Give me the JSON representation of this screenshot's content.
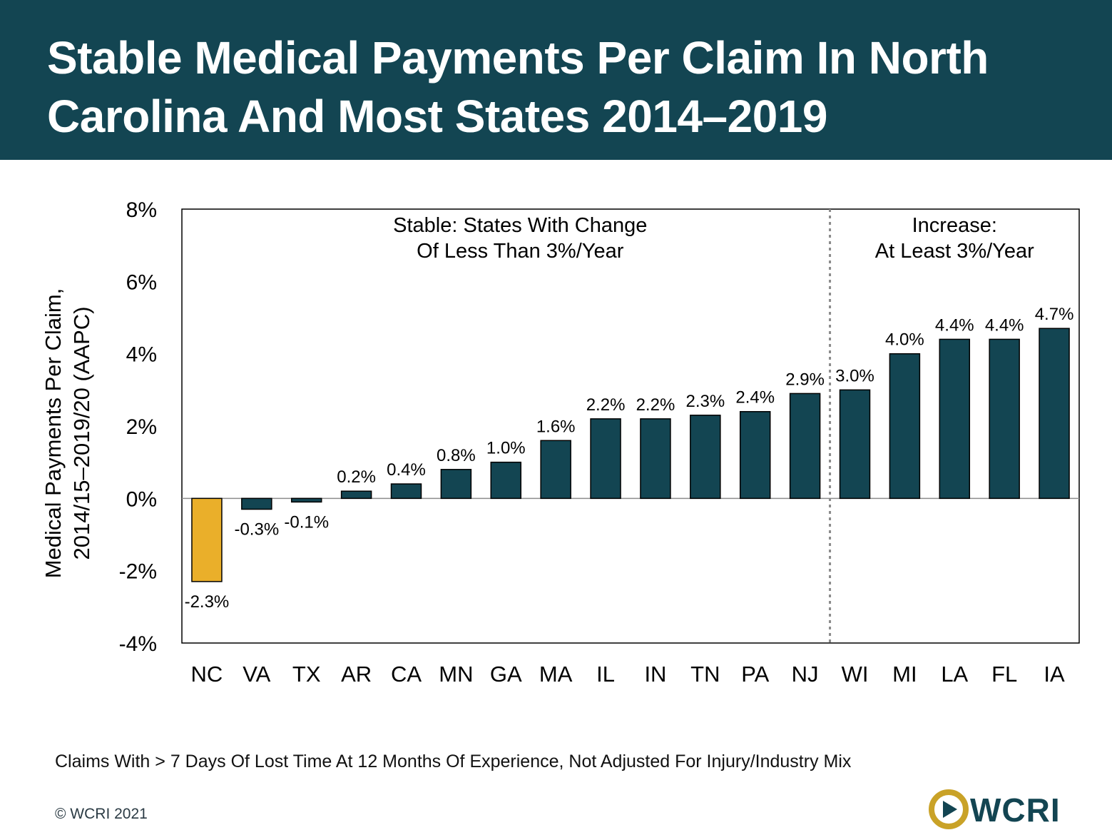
{
  "header": {
    "title": "Stable Medical Payments Per Claim In North Carolina And Most States 2014–2019"
  },
  "colors": {
    "header_bg": "#134552",
    "bar": "#134552",
    "highlight_bar": "#EAAF2A",
    "divider": "#8a8a8a"
  },
  "chart_data": {
    "type": "bar",
    "categories": [
      "NC",
      "VA",
      "TX",
      "AR",
      "CA",
      "MN",
      "GA",
      "MA",
      "IL",
      "IN",
      "TN",
      "PA",
      "NJ",
      "WI",
      "MI",
      "LA",
      "FL",
      "IA"
    ],
    "values": [
      -2.3,
      -0.3,
      -0.1,
      0.2,
      0.4,
      0.8,
      1.0,
      1.6,
      2.2,
      2.2,
      2.3,
      2.4,
      2.9,
      3.0,
      4.0,
      4.4,
      4.4,
      4.7
    ],
    "data_labels": [
      "-2.3%",
      "-0.3%",
      "-0.1%",
      "0.2%",
      "0.4%",
      "0.8%",
      "1.0%",
      "1.6%",
      "2.2%",
      "2.2%",
      "2.3%",
      "2.4%",
      "2.9%",
      "3.0%",
      "4.0%",
      "4.4%",
      "4.4%",
      "4.7%"
    ],
    "highlight_category": "NC",
    "ylabel_lines": [
      "Medical Payments Per Claim,",
      "2014/15–2019/20 (AAPC)"
    ],
    "xlabel": "",
    "ylim": [
      -4,
      8
    ],
    "yticks": [
      8,
      6,
      4,
      2,
      0,
      -2,
      -4
    ],
    "ytick_labels": [
      "8%",
      "6%",
      "4%",
      "2%",
      "0%",
      "-2%",
      "-4%"
    ],
    "grid": false,
    "divider_after_category": "NJ",
    "annotations": [
      {
        "lines": [
          "Stable: States With Change",
          "Of Less Than 3%/Year"
        ]
      },
      {
        "lines": [
          "Increase:",
          "At Least 3%/Year"
        ]
      }
    ]
  },
  "footer": {
    "note": "Claims With > 7 Days Of Lost Time At 12 Months Of Experience, Not Adjusted For Injury/Industry Mix",
    "copyright": "© WCRI 2021",
    "logo_text": "WCRI"
  }
}
